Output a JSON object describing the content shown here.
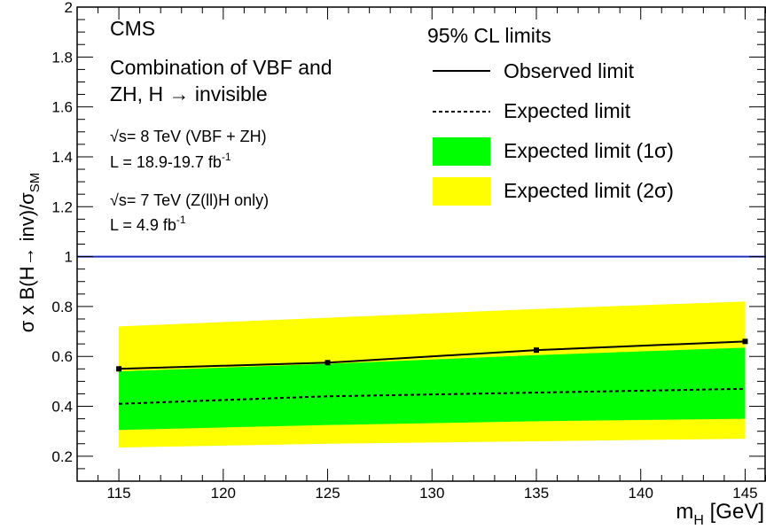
{
  "chart_data": {
    "type": "line",
    "title": "",
    "xlabel": "m",
    "xlabel_sub": "H",
    "xlabel_unit": " [GeV]",
    "ylabel_main": "σ x B(H→ inv)/σ",
    "ylabel_sub": "SM",
    "xlim": [
      113,
      146
    ],
    "ylim": [
      0.1,
      2.0
    ],
    "xticks": [
      115,
      120,
      125,
      130,
      135,
      140,
      145
    ],
    "yticks": [
      0.2,
      0.4,
      0.6,
      0.8,
      1,
      1.2,
      1.4,
      1.6,
      1.8,
      2
    ],
    "reference_line": {
      "y": 1,
      "color": "#1f2fbf"
    },
    "series": [
      {
        "name": "Observed limit",
        "style": "solid",
        "color": "#000000",
        "markers": true,
        "x": [
          115,
          125,
          135,
          145
        ],
        "y": [
          0.55,
          0.575,
          0.625,
          0.66
        ]
      },
      {
        "name": "Expected limit",
        "style": "dashed",
        "color": "#000000",
        "x": [
          115,
          125,
          135,
          145
        ],
        "y": [
          0.41,
          0.44,
          0.455,
          0.47
        ]
      }
    ],
    "bands": [
      {
        "name": "Expected limit (2σ)",
        "color": "#ffff00",
        "x": [
          115,
          125,
          135,
          145
        ],
        "low": [
          0.235,
          0.25,
          0.26,
          0.27
        ],
        "high": [
          0.72,
          0.755,
          0.79,
          0.82
        ]
      },
      {
        "name": "Expected limit (1σ)",
        "color": "#00ff00",
        "x": [
          115,
          125,
          135,
          145
        ],
        "low": [
          0.305,
          0.325,
          0.34,
          0.35
        ],
        "high": [
          0.54,
          0.57,
          0.605,
          0.635
        ]
      }
    ],
    "legend": {
      "position": "top-right",
      "header": "95% CL limits",
      "entries": [
        {
          "label": "Observed limit",
          "kind": "solid-line"
        },
        {
          "label": "Expected limit",
          "kind": "dashed-line"
        },
        {
          "label": "Expected limit (1σ)",
          "kind": "green-box"
        },
        {
          "label": "Expected limit (2σ)",
          "kind": "yellow-box"
        }
      ]
    },
    "annotations": {
      "experiment": "CMS",
      "analysis_line1": "Combination of VBF and",
      "analysis_line2": "ZH, H → invisible",
      "run1_energy": "= 8 TeV (VBF + ZH)",
      "run1_lumi": "L = 18.9-19.7 fb",
      "run2_energy": "= 7 TeV (Z(ll)H only)",
      "run2_lumi": "L = 4.9 fb",
      "sqrt_s": "√s",
      "lumi_exp": "-1"
    }
  }
}
